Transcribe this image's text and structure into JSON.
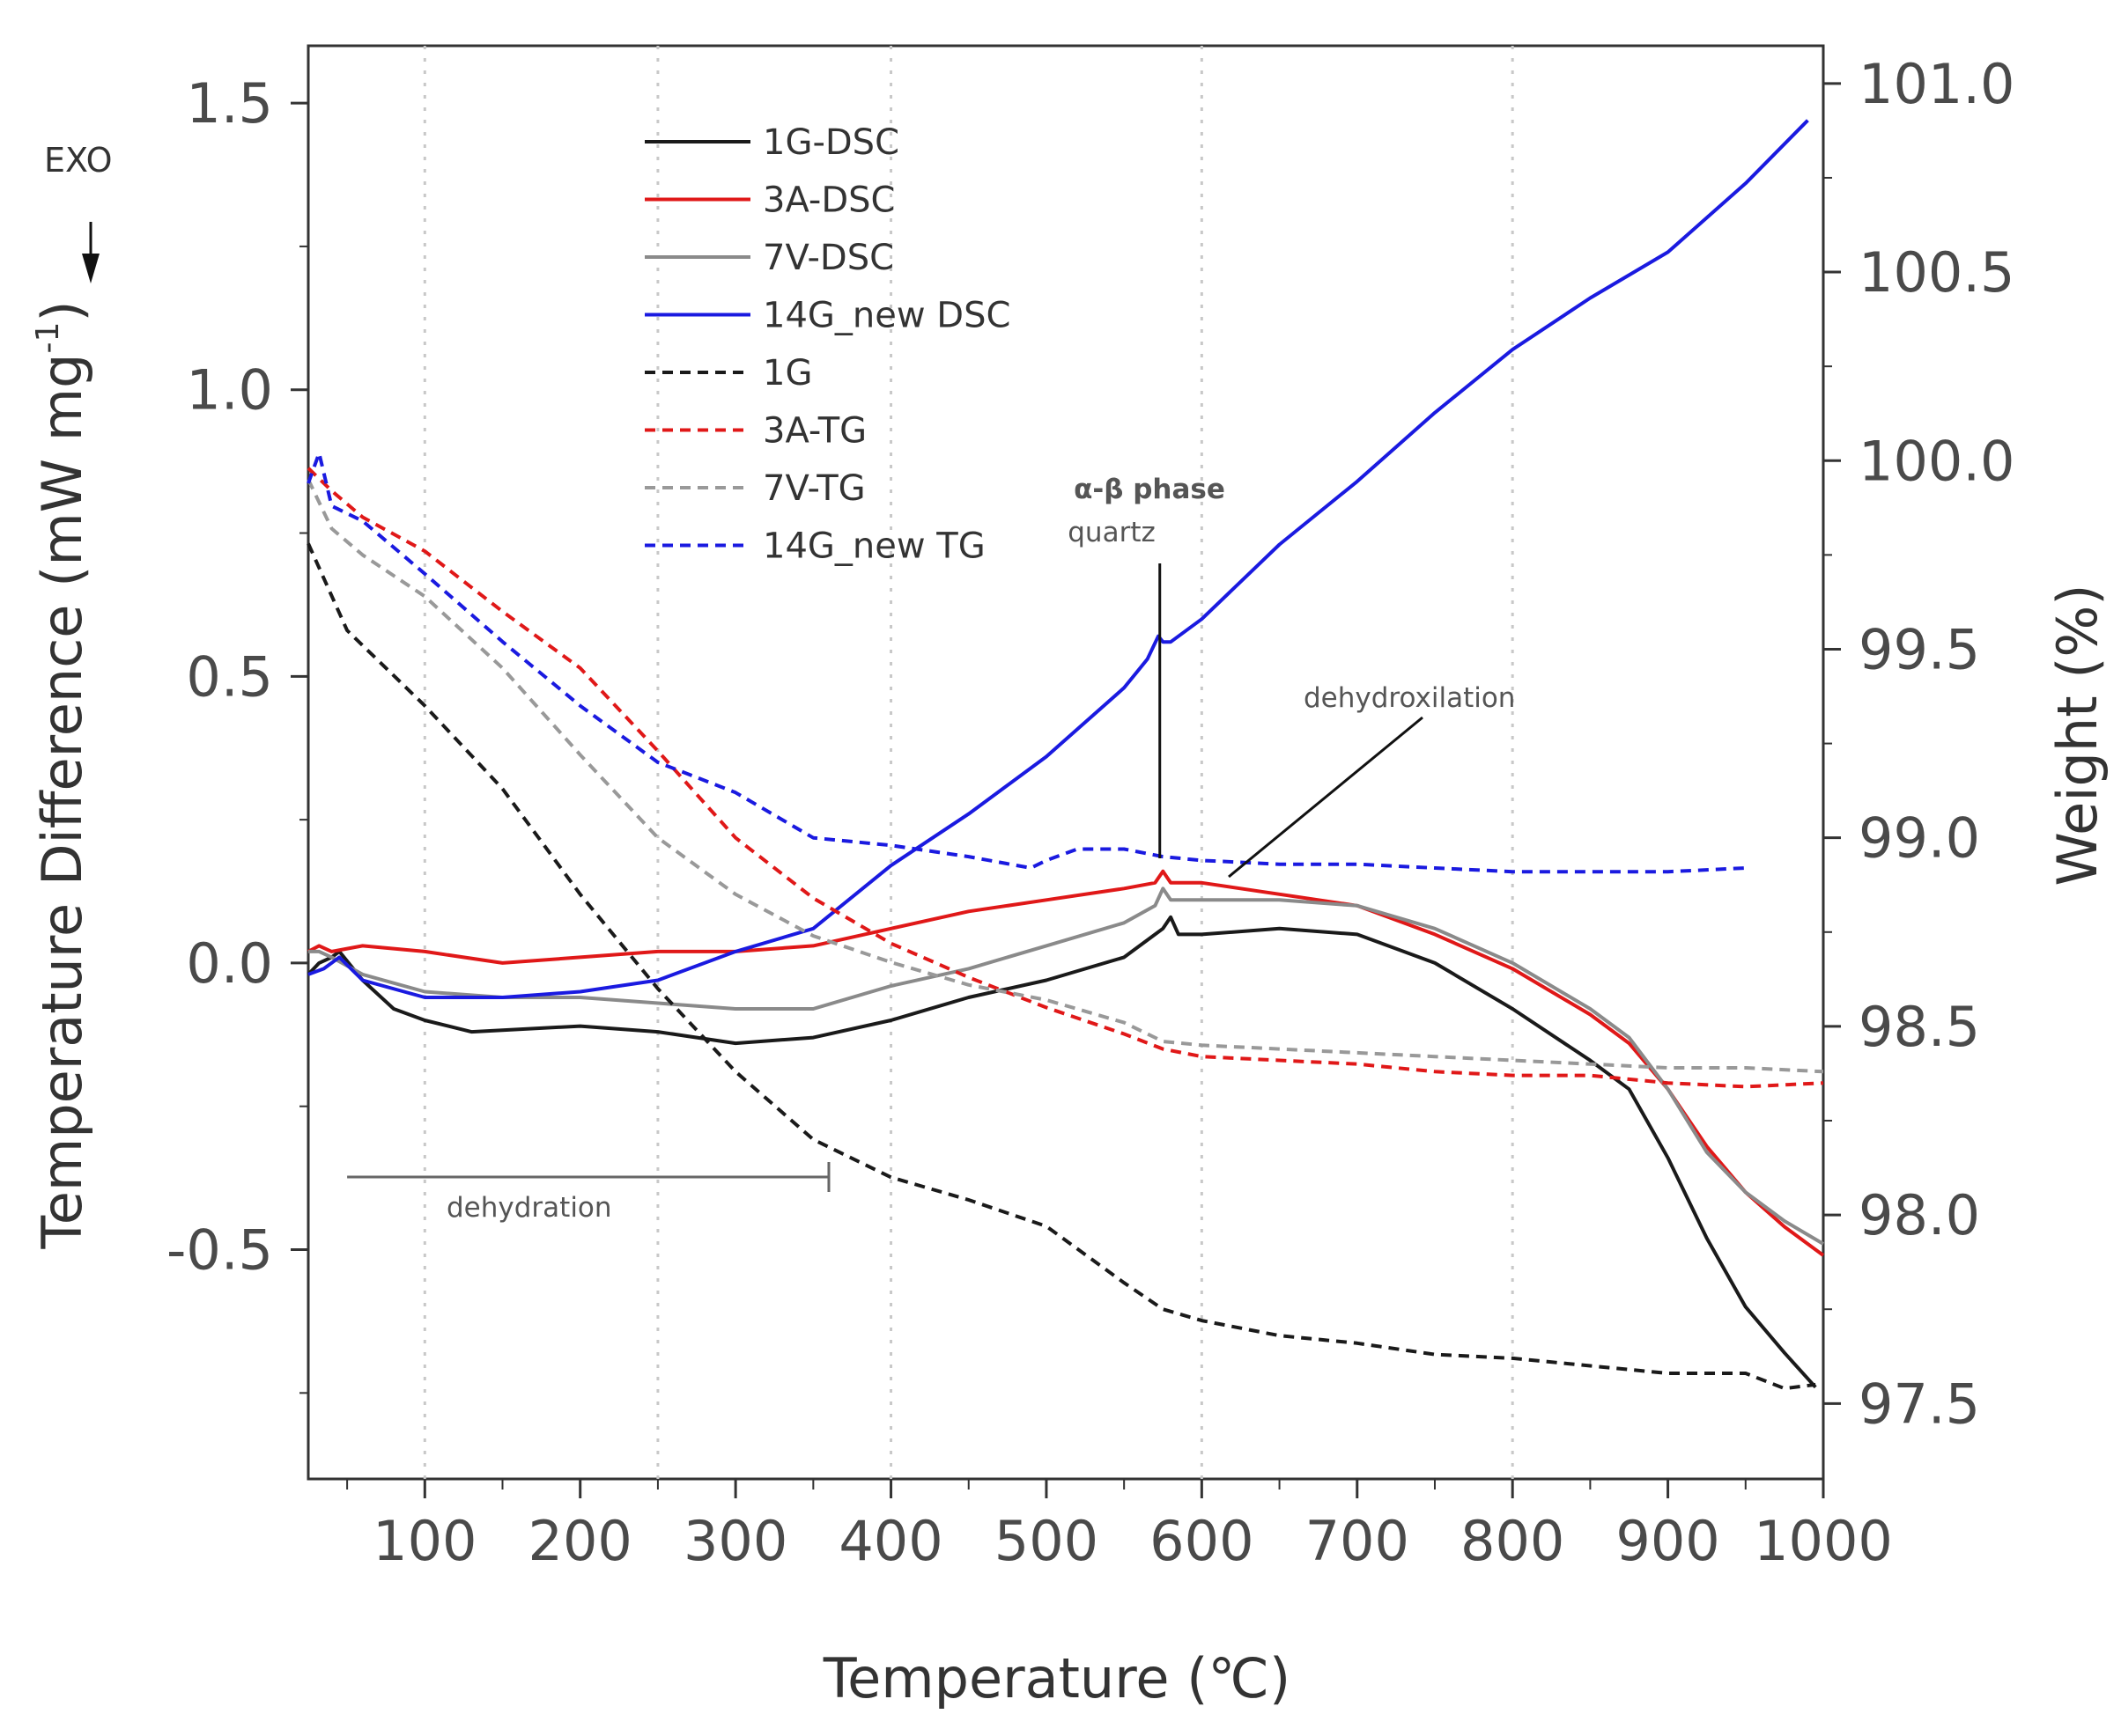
{
  "chart_data": {
    "type": "line",
    "title": "",
    "xlabel": "Temperature (℃)",
    "ylabel_left_main": "Temperature Difference (mW mg",
    "ylabel_left_sup": "-1",
    "ylabel_left_close": ")",
    "ylabel_right": "Weight (%)",
    "exo_label": "EXO",
    "xlim": [
      25,
      1000
    ],
    "ylim_left": [
      -0.9,
      1.6
    ],
    "ylim_right": [
      97.3,
      101.1
    ],
    "x_ticks": [
      100,
      200,
      300,
      400,
      500,
      600,
      700,
      800,
      900,
      1000
    ],
    "x_tick_labels": [
      "100",
      "200",
      "300",
      "400",
      "500",
      "600",
      "700",
      "800",
      "900",
      "1000"
    ],
    "y_left_ticks": [
      1.5,
      1.0,
      0.5,
      0.0,
      -0.5
    ],
    "y_left_tick_labels": [
      "1.5",
      "1.0",
      "0.5",
      "0.0",
      "-0.5"
    ],
    "y_right_ticks": [
      101.0,
      100.5,
      100.0,
      99.5,
      99.0,
      98.5,
      98.0,
      97.5
    ],
    "y_right_tick_labels": [
      "101.0",
      "100.5",
      "100.0",
      "99.5",
      "99.0",
      "98.5",
      "98.0",
      "97.5"
    ],
    "vertical_gridlines": [
      100,
      250,
      400,
      600,
      800
    ],
    "legend_position": "top-center",
    "series": [
      {
        "name": "1G-DSC",
        "axis": "left",
        "color": "#1a1a1a",
        "dash": "solid",
        "x": [
          25,
          32,
          40,
          45,
          60,
          80,
          100,
          130,
          200,
          250,
          300,
          350,
          400,
          450,
          500,
          550,
          570,
          575,
          580,
          585,
          600,
          650,
          700,
          750,
          800,
          850,
          875,
          900,
          925,
          950,
          975,
          995
        ],
        "y": [
          -0.02,
          0.0,
          0.01,
          0.02,
          -0.03,
          -0.08,
          -0.1,
          -0.12,
          -0.11,
          -0.12,
          -0.14,
          -0.13,
          -0.1,
          -0.06,
          -0.03,
          0.01,
          0.05,
          0.06,
          0.08,
          0.05,
          0.05,
          0.06,
          0.05,
          0.0,
          -0.08,
          -0.17,
          -0.22,
          -0.34,
          -0.48,
          -0.6,
          -0.68,
          -0.74
        ]
      },
      {
        "name": "3A-DSC",
        "axis": "left",
        "color": "#e01818",
        "dash": "solid",
        "x": [
          25,
          32,
          40,
          60,
          100,
          150,
          200,
          250,
          300,
          350,
          400,
          450,
          500,
          550,
          570,
          575,
          580,
          600,
          650,
          700,
          750,
          800,
          850,
          875,
          900,
          925,
          950,
          975,
          1000
        ],
        "y": [
          0.02,
          0.03,
          0.02,
          0.03,
          0.02,
          0.0,
          0.01,
          0.02,
          0.02,
          0.03,
          0.06,
          0.09,
          0.11,
          0.13,
          0.14,
          0.16,
          0.14,
          0.14,
          0.12,
          0.1,
          0.05,
          -0.01,
          -0.09,
          -0.14,
          -0.22,
          -0.32,
          -0.4,
          -0.46,
          -0.51
        ]
      },
      {
        "name": "7V-DSC",
        "axis": "left",
        "color": "#8a8a8a",
        "dash": "solid",
        "x": [
          25,
          32,
          40,
          60,
          100,
          150,
          200,
          250,
          300,
          350,
          400,
          450,
          500,
          550,
          570,
          575,
          580,
          600,
          650,
          700,
          750,
          800,
          850,
          875,
          900,
          925,
          950,
          975,
          1000
        ],
        "y": [
          0.02,
          0.02,
          0.01,
          -0.02,
          -0.05,
          -0.06,
          -0.06,
          -0.07,
          -0.08,
          -0.08,
          -0.04,
          -0.01,
          0.03,
          0.07,
          0.1,
          0.13,
          0.11,
          0.11,
          0.11,
          0.1,
          0.06,
          0.0,
          -0.08,
          -0.13,
          -0.22,
          -0.33,
          -0.4,
          -0.45,
          -0.49
        ]
      },
      {
        "name": "14G_new DSC",
        "axis": "left",
        "color": "#1a1ae0",
        "dash": "solid",
        "x": [
          25,
          35,
          45,
          60,
          100,
          150,
          200,
          250,
          300,
          350,
          400,
          450,
          500,
          550,
          565,
          572,
          575,
          580,
          600,
          650,
          700,
          750,
          800,
          850,
          900,
          950,
          990
        ],
        "y": [
          -0.02,
          -0.01,
          0.01,
          -0.03,
          -0.06,
          -0.06,
          -0.05,
          -0.03,
          0.02,
          0.06,
          0.17,
          0.26,
          0.36,
          0.48,
          0.53,
          0.57,
          0.56,
          0.56,
          0.6,
          0.73,
          0.84,
          0.96,
          1.07,
          1.16,
          1.24,
          1.36,
          1.47
        ]
      },
      {
        "name": "1G",
        "axis": "right",
        "color": "#1a1a1a",
        "dash": "dashed",
        "x": [
          25,
          50,
          100,
          150,
          200,
          250,
          300,
          350,
          400,
          450,
          500,
          550,
          575,
          600,
          650,
          700,
          750,
          800,
          850,
          900,
          950,
          975,
          995
        ],
        "y": [
          99.78,
          99.55,
          99.35,
          99.13,
          98.85,
          98.6,
          98.38,
          98.2,
          98.1,
          98.04,
          97.97,
          97.82,
          97.75,
          97.72,
          97.68,
          97.66,
          97.63,
          97.62,
          97.6,
          97.58,
          97.58,
          97.54,
          97.55
        ]
      },
      {
        "name": "3A-TG",
        "axis": "right",
        "color": "#e01818",
        "dash": "dashed",
        "x": [
          25,
          40,
          60,
          100,
          150,
          200,
          250,
          300,
          350,
          400,
          450,
          500,
          550,
          575,
          600,
          650,
          700,
          750,
          800,
          850,
          900,
          950,
          1000
        ],
        "y": [
          99.98,
          99.92,
          99.85,
          99.76,
          99.6,
          99.45,
          99.23,
          99.0,
          98.84,
          98.72,
          98.63,
          98.55,
          98.48,
          98.44,
          98.42,
          98.41,
          98.4,
          98.38,
          98.37,
          98.37,
          98.35,
          98.34,
          98.35
        ]
      },
      {
        "name": "7V-TG",
        "axis": "right",
        "color": "#999999",
        "dash": "dashed",
        "x": [
          25,
          40,
          60,
          100,
          150,
          200,
          250,
          300,
          350,
          400,
          450,
          500,
          550,
          575,
          600,
          650,
          700,
          750,
          800,
          850,
          900,
          950,
          1000
        ],
        "y": [
          99.95,
          99.82,
          99.75,
          99.64,
          99.45,
          99.22,
          99.0,
          98.85,
          98.74,
          98.67,
          98.61,
          98.57,
          98.51,
          98.46,
          98.45,
          98.44,
          98.43,
          98.42,
          98.41,
          98.4,
          98.39,
          98.39,
          98.38
        ]
      },
      {
        "name": "14G_new TG",
        "axis": "right",
        "color": "#1a1ae0",
        "dash": "dashed",
        "x": [
          25,
          32,
          40,
          60,
          100,
          150,
          200,
          250,
          300,
          350,
          400,
          450,
          490,
          500,
          520,
          550,
          575,
          600,
          650,
          700,
          750,
          800,
          850,
          900,
          950
        ],
        "y": [
          99.94,
          100.02,
          99.88,
          99.84,
          99.7,
          99.52,
          99.35,
          99.2,
          99.12,
          99.0,
          98.98,
          98.95,
          98.92,
          98.94,
          98.97,
          98.97,
          98.95,
          98.94,
          98.93,
          98.93,
          98.92,
          98.91,
          98.91,
          98.91,
          98.92
        ]
      }
    ],
    "annotations": [
      {
        "text_line1": "α-β phase",
        "text_line2": "quartz",
        "target_x": 573
      },
      {
        "text": "dehydroxilation",
        "target_x": 622
      },
      {
        "text": "dehydration",
        "from_x": 50,
        "to_x": 360
      }
    ]
  }
}
